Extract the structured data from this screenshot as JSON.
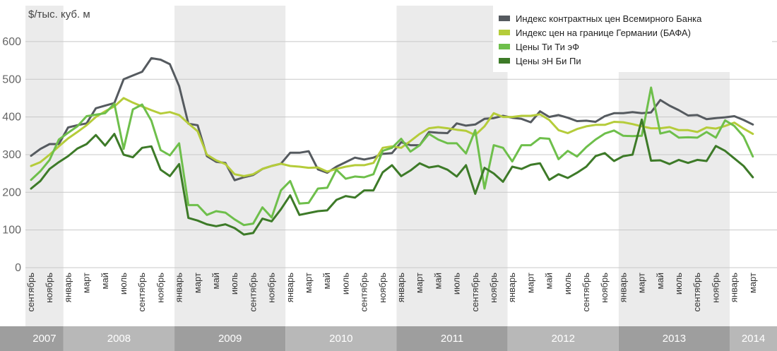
{
  "chart_data": {
    "type": "line",
    "ylabel": "$/тыс. куб. м",
    "ylim": [
      0,
      650
    ],
    "yticks": [
      0,
      100,
      200,
      300,
      400,
      500,
      600
    ],
    "grid": true,
    "legend_position": "top-right",
    "x": [
      "2007-09",
      "2007-10",
      "2007-11",
      "2007-12",
      "2008-01",
      "2008-02",
      "2008-03",
      "2008-04",
      "2008-05",
      "2008-06",
      "2008-07",
      "2008-08",
      "2008-09",
      "2008-10",
      "2008-11",
      "2008-12",
      "2009-01",
      "2009-02",
      "2009-03",
      "2009-04",
      "2009-05",
      "2009-06",
      "2009-07",
      "2009-08",
      "2009-09",
      "2009-10",
      "2009-11",
      "2009-12",
      "2010-01",
      "2010-02",
      "2010-03",
      "2010-04",
      "2010-05",
      "2010-06",
      "2010-07",
      "2010-08",
      "2010-09",
      "2010-10",
      "2010-11",
      "2010-12",
      "2011-01",
      "2011-02",
      "2011-03",
      "2011-04",
      "2011-05",
      "2011-06",
      "2011-07",
      "2011-08",
      "2011-09",
      "2011-10",
      "2011-11",
      "2011-12",
      "2012-01",
      "2012-02",
      "2012-03",
      "2012-04",
      "2012-05",
      "2012-06",
      "2012-07",
      "2012-08",
      "2012-09",
      "2012-10",
      "2012-11",
      "2012-12",
      "2013-01",
      "2013-02",
      "2013-03",
      "2013-04",
      "2013-05",
      "2013-06",
      "2013-07",
      "2013-08",
      "2013-09",
      "2013-10",
      "2013-11",
      "2013-12",
      "2014-01",
      "2014-02",
      "2014-03"
    ],
    "month_tick_labels": [
      "сентябрь",
      "ноябрь",
      "январь",
      "март",
      "май",
      "июль",
      "сентябрь",
      "ноябрь",
      "январь",
      "март",
      "май",
      "июль",
      "сентябрь",
      "ноябрь",
      "январь",
      "март",
      "май",
      "июль",
      "сентябрь",
      "ноябрь",
      "январь",
      "март",
      "май",
      "июль",
      "сентябрь",
      "ноябрь",
      "январь",
      "март",
      "май",
      "июль",
      "сентябрь",
      "ноябрь",
      "январь",
      "март",
      "май",
      "июль",
      "сентябрь",
      "ноябрь",
      "январь",
      "март"
    ],
    "year_bands": [
      {
        "label": "2007",
        "start": 0,
        "end": 3
      },
      {
        "label": "2008",
        "start": 4,
        "end": 15
      },
      {
        "label": "2009",
        "start": 16,
        "end": 27
      },
      {
        "label": "2010",
        "start": 28,
        "end": 39
      },
      {
        "label": "2011",
        "start": 40,
        "end": 51
      },
      {
        "label": "2012",
        "start": 52,
        "end": 63
      },
      {
        "label": "2013",
        "start": 64,
        "end": 75
      },
      {
        "label": "2014",
        "start": 76,
        "end": 78
      }
    ],
    "series": [
      {
        "name": "Индекс контрактных цен Всемирного Банка",
        "color": "#555a5f",
        "values": [
          297,
          315,
          328,
          328,
          372,
          378,
          383,
          423,
          430,
          437,
          500,
          510,
          520,
          556,
          552,
          540,
          482,
          382,
          378,
          296,
          281,
          278,
          232,
          240,
          246,
          262,
          270,
          276,
          305,
          305,
          309,
          261,
          252,
          268,
          280,
          292,
          287,
          292,
          302,
          304,
          333,
          325,
          325,
          360,
          358,
          357,
          383,
          377,
          380,
          395,
          397,
          403,
          398,
          395,
          386,
          415,
          400,
          405,
          398,
          389,
          390,
          387,
          402,
          410,
          410,
          413,
          410,
          412,
          445,
          430,
          418,
          404,
          405,
          394,
          397,
          399,
          402,
          392,
          380
        ]
      },
      {
        "name": "Индекс цен на границе Германии (БАФА)",
        "color": "#b5cc3a",
        "values": [
          270,
          280,
          300,
          322,
          343,
          360,
          378,
          400,
          415,
          428,
          450,
          438,
          428,
          418,
          409,
          413,
          405,
          383,
          362,
          300,
          285,
          275,
          248,
          243,
          248,
          262,
          270,
          276,
          270,
          268,
          265,
          266,
          255,
          262,
          268,
          272,
          272,
          278,
          318,
          322,
          318,
          336,
          355,
          370,
          373,
          370,
          366,
          363,
          352,
          375,
          410,
          400,
          400,
          403,
          403,
          407,
          392,
          365,
          357,
          368,
          375,
          379,
          379,
          387,
          386,
          381,
          375,
          370,
          370,
          373,
          365,
          365,
          360,
          372,
          369,
          376,
          385,
          369,
          355
        ]
      },
      {
        "name": "Цены Ти Ти эФ",
        "color": "#6ebf4b",
        "values": [
          233,
          256,
          286,
          340,
          358,
          375,
          402,
          406,
          410,
          435,
          315,
          420,
          433,
          390,
          312,
          298,
          330,
          166,
          166,
          140,
          150,
          146,
          128,
          113,
          117,
          160,
          133,
          205,
          230,
          170,
          172,
          210,
          212,
          260,
          236,
          242,
          240,
          248,
          310,
          318,
          342,
          308,
          325,
          355,
          340,
          330,
          330,
          303,
          365,
          210,
          325,
          318,
          282,
          325,
          325,
          344,
          342,
          288,
          310,
          295,
          320,
          340,
          356,
          364,
          350,
          349,
          350,
          478,
          356,
          362,
          345,
          346,
          345,
          360,
          345,
          391,
          376,
          348,
          295
        ]
      },
      {
        "name": "Цены эН Би Пи",
        "color": "#3d7a28",
        "values": [
          210,
          230,
          262,
          280,
          296,
          316,
          328,
          352,
          324,
          355,
          300,
          293,
          318,
          322,
          260,
          243,
          275,
          132,
          125,
          115,
          110,
          115,
          105,
          88,
          92,
          130,
          123,
          155,
          192,
          140,
          145,
          150,
          152,
          180,
          190,
          186,
          205,
          205,
          253,
          272,
          243,
          258,
          277,
          266,
          270,
          260,
          242,
          272,
          196,
          265,
          250,
          228,
          268,
          262,
          273,
          277,
          233,
          248,
          238,
          252,
          268,
          296,
          304,
          283,
          296,
          300,
          393,
          284,
          285,
          275,
          286,
          278,
          286,
          283,
          323,
          310,
          290,
          270,
          240
        ]
      }
    ]
  }
}
